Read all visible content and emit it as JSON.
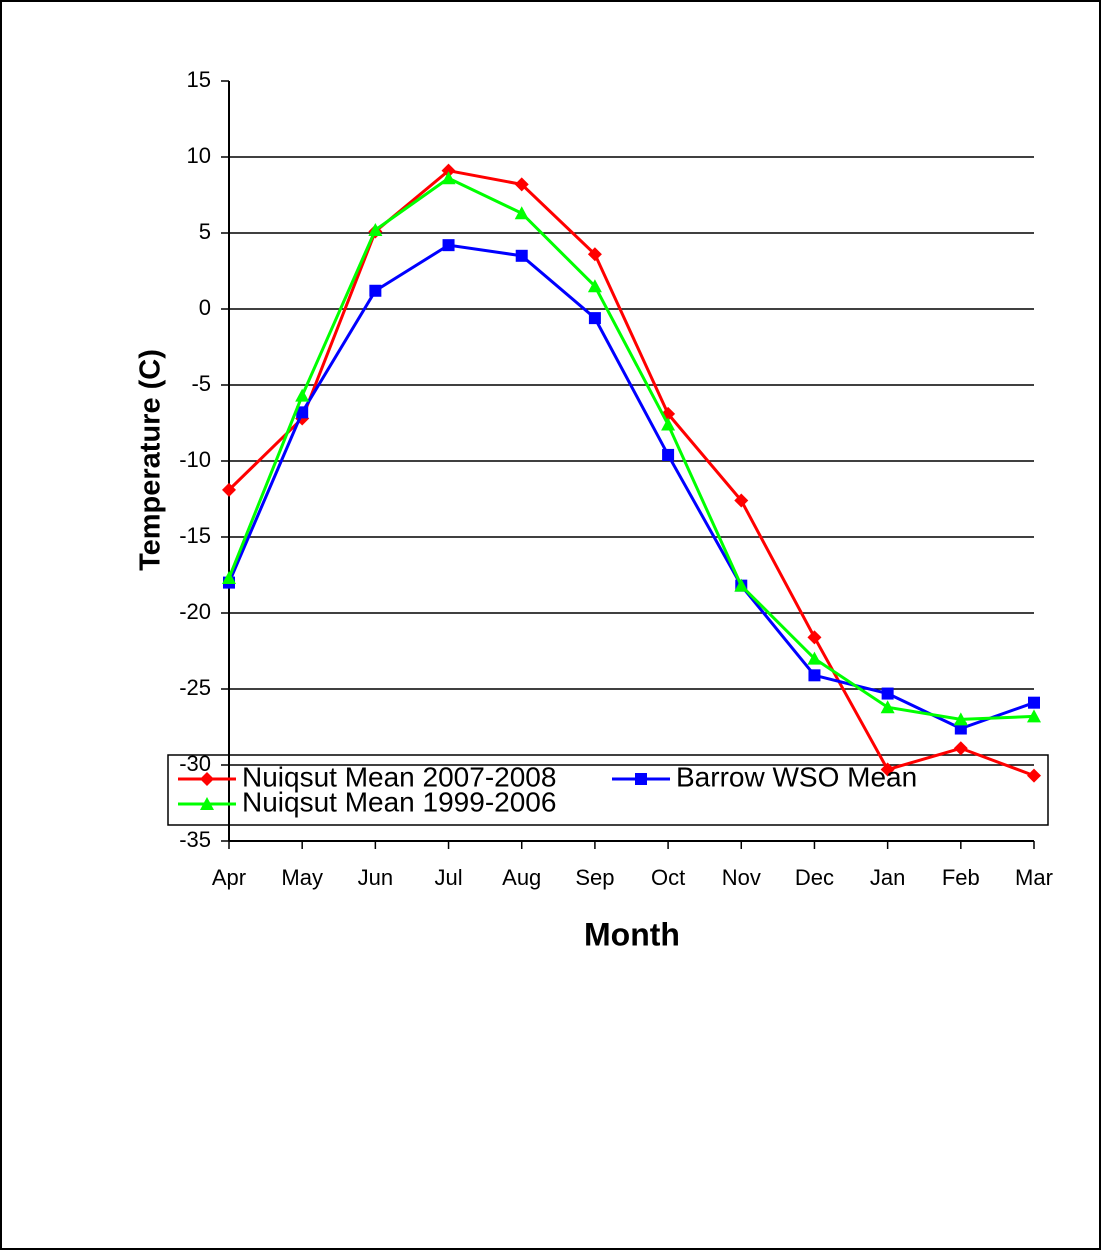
{
  "chart_data": {
    "type": "line",
    "x_label": "Month",
    "y_label": "Temperature (C)",
    "categories": [
      "Apr",
      "May",
      "Jun",
      "Jul",
      "Aug",
      "Sep",
      "Oct",
      "Nov",
      "Dec",
      "Jan",
      "Feb",
      "Mar"
    ],
    "series": [
      {
        "name": "Nuiqsut Mean 2007-2008",
        "color": "#ff0000",
        "marker": "diamond",
        "values": [
          -11.9,
          -7.2,
          5.1,
          9.1,
          8.2,
          3.6,
          -6.9,
          -12.6,
          -21.6,
          -30.3,
          -28.9,
          -30.7
        ]
      },
      {
        "name": "Barrow WSO Mean",
        "color": "#0000ff",
        "marker": "square",
        "values": [
          -18.0,
          -6.8,
          1.2,
          4.2,
          3.5,
          -0.6,
          -9.6,
          -18.2,
          -24.1,
          -25.3,
          -27.6,
          -25.9
        ]
      },
      {
        "name": "Nuiqsut Mean 1999-2006",
        "color": "#00ff00",
        "marker": "triangle",
        "values": [
          -17.7,
          -5.7,
          5.2,
          8.6,
          6.3,
          1.5,
          -7.6,
          -18.2,
          -23.0,
          -26.2,
          -27.0,
          -26.8
        ]
      }
    ],
    "ylim": [
      -35,
      15
    ],
    "yticks": [
      -35,
      -30,
      -25,
      -20,
      -15,
      -10,
      -5,
      0,
      5,
      10,
      15
    ],
    "grid": true,
    "legend": "bottom"
  }
}
